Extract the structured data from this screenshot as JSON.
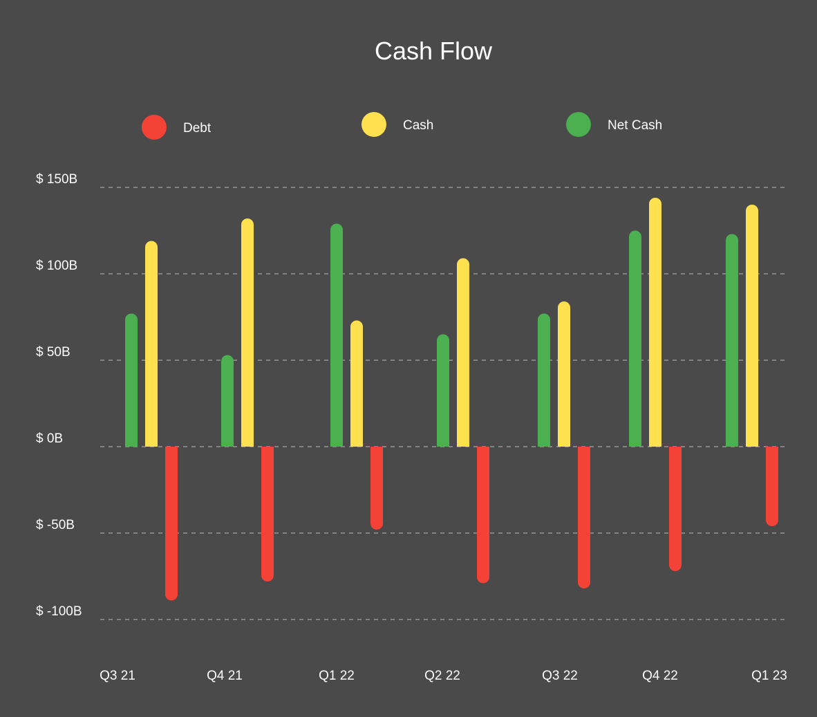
{
  "chart_data": {
    "type": "bar",
    "title": "Cash Flow",
    "categories": [
      "Q3 21",
      "Q4 21",
      "Q1 22",
      "Q2 22",
      "Q3 22",
      "Q4 22",
      "Q1 23"
    ],
    "series": [
      {
        "name": "Net Cash",
        "color": "#4caf50",
        "values": [
          77,
          53,
          129,
          65,
          77,
          125,
          123
        ]
      },
      {
        "name": "Cash",
        "color": "#ffe150",
        "values": [
          119,
          132,
          73,
          109,
          84,
          144,
          140
        ]
      },
      {
        "name": "Debt",
        "color": "#f44336",
        "values": [
          -89,
          -78,
          -48,
          -79,
          -82,
          -72,
          -46
        ]
      }
    ],
    "legend_order": [
      "Debt",
      "Cash",
      "Net Cash"
    ],
    "legend_placement": "top",
    "y_ticks": [
      "$ 150B",
      "$ 100B",
      "$ 50B",
      "$ 0B",
      "$ -50B",
      "$ -100B"
    ],
    "y_tick_values": [
      150,
      100,
      50,
      0,
      -50,
      -100
    ],
    "ylim": [
      -100,
      150
    ],
    "grid": true,
    "xlabel": "",
    "ylabel": ""
  }
}
